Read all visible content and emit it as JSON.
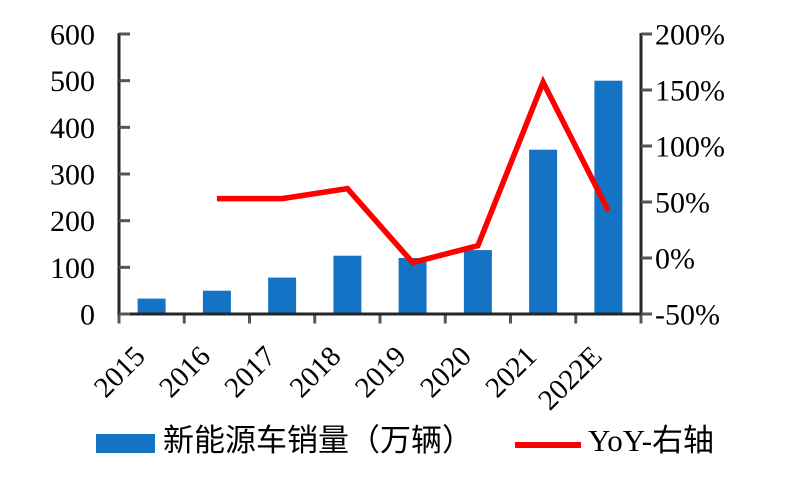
{
  "chart_data": {
    "type": "combo",
    "categories": [
      "2015",
      "2016",
      "2017",
      "2018",
      "2019",
      "2020",
      "2021",
      "2022E"
    ],
    "series": [
      {
        "name": "新能源车销量（万辆）",
        "type": "bar",
        "y_axis": "left",
        "color": "#1573C6",
        "values": [
          33,
          50,
          78,
          125,
          120,
          137,
          352,
          500
        ]
      },
      {
        "name": "YoY-右轴",
        "type": "line",
        "y_axis": "right",
        "color": "#FF0000",
        "values": [
          null,
          53,
          53,
          62,
          -4,
          11,
          157,
          42
        ]
      }
    ],
    "left_axis": {
      "min": 0,
      "max": 600,
      "step": 100,
      "tick_labels": [
        "0",
        "100",
        "200",
        "300",
        "400",
        "500",
        "600"
      ]
    },
    "right_axis": {
      "min": -50,
      "max": 200,
      "step": 50,
      "tick_labels": [
        "-50%",
        "0%",
        "50%",
        "100%",
        "150%",
        "200%"
      ],
      "unit": "%"
    },
    "grid": false,
    "legend": {
      "position": "bottom"
    }
  },
  "colors": {
    "bar": "#1573C6",
    "line": "#FF0000",
    "axis": "#262626",
    "tick": "#555555",
    "text": "#000000",
    "background": "#FFFFFF"
  }
}
